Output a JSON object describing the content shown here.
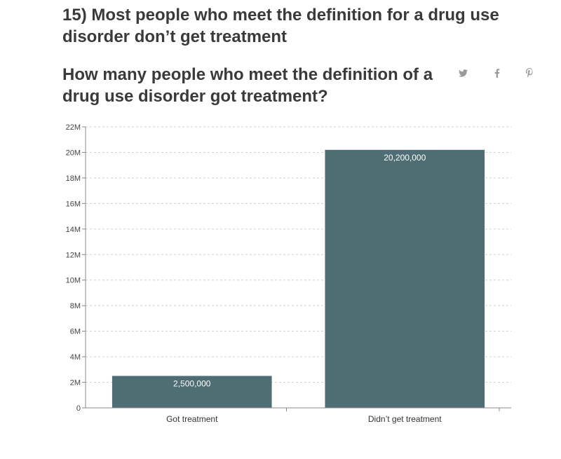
{
  "article": {
    "headline": "15) Most people who meet the definition for a drug use disorder don’t get treatment"
  },
  "share": {
    "icons": [
      "twitter-icon",
      "facebook-icon",
      "pinterest-icon"
    ],
    "icon_color": "#9a9a9a"
  },
  "colors": {
    "bar": "#4f6e73",
    "grid": "#d0d0d0",
    "axis": "#888888"
  },
  "chart_data": {
    "type": "bar",
    "title": "How many people who meet the definition of a drug use disorder got treatment?",
    "xlabel": "",
    "ylabel": "",
    "categories": [
      "Got treatment",
      "Didn’t get treatment"
    ],
    "values": [
      2500000,
      20200000
    ],
    "data_labels": [
      "2,500,000",
      "20,200,000"
    ],
    "ylim": [
      0,
      22000000
    ],
    "y_ticks": [
      0,
      2000000,
      4000000,
      6000000,
      8000000,
      10000000,
      12000000,
      14000000,
      16000000,
      18000000,
      20000000,
      22000000
    ],
    "y_tick_labels": [
      "0",
      "2M",
      "4M",
      "6M",
      "8M",
      "10M",
      "12M",
      "14M",
      "16M",
      "18M",
      "20M",
      "22M"
    ],
    "grid": true,
    "legend": "none"
  }
}
